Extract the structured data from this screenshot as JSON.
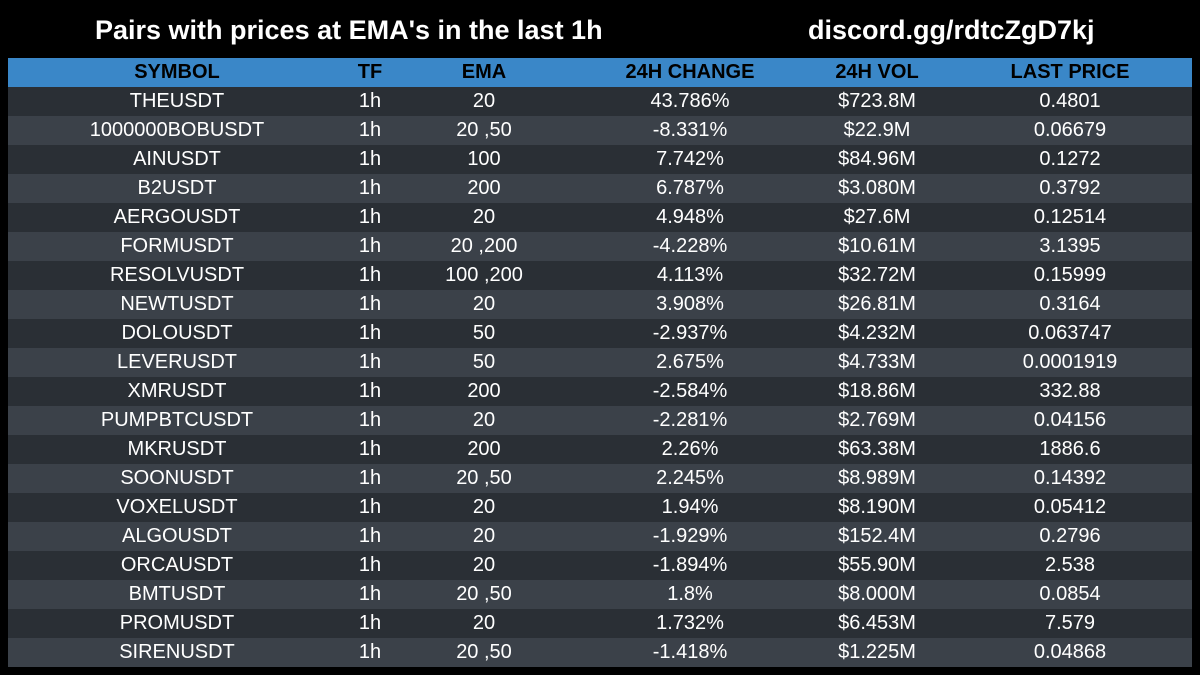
{
  "header": {
    "title": "Pairs with prices at EMA's in the last 1h",
    "link": "discord.gg/rdtcZgD7kj"
  },
  "colors": {
    "background": "#000000",
    "header_row": "#3a87c8",
    "row_dark": "#2a2f35",
    "row_light": "#3b4149"
  },
  "table": {
    "columns": [
      "SYMBOL",
      "TF",
      "EMA",
      "24H CHANGE",
      "24H VOL",
      "LAST PRICE"
    ],
    "rows": [
      [
        "THEUSDT",
        "1h",
        "20",
        "43.786%",
        "$723.8M",
        "0.4801"
      ],
      [
        "1000000BOBUSDT",
        "1h",
        "20 ,50",
        "-8.331%",
        "$22.9M",
        "0.06679"
      ],
      [
        "AINUSDT",
        "1h",
        "100",
        "7.742%",
        "$84.96M",
        "0.1272"
      ],
      [
        "B2USDT",
        "1h",
        "200",
        "6.787%",
        "$3.080M",
        "0.3792"
      ],
      [
        "AERGOUSDT",
        "1h",
        "20",
        "4.948%",
        "$27.6M",
        "0.12514"
      ],
      [
        "FORMUSDT",
        "1h",
        "20 ,200",
        "-4.228%",
        "$10.61M",
        "3.1395"
      ],
      [
        "RESOLVUSDT",
        "1h",
        "100 ,200",
        "4.113%",
        "$32.72M",
        "0.15999"
      ],
      [
        "NEWTUSDT",
        "1h",
        "20",
        "3.908%",
        "$26.81M",
        "0.3164"
      ],
      [
        "DOLOUSDT",
        "1h",
        "50",
        "-2.937%",
        "$4.232M",
        "0.063747"
      ],
      [
        "LEVERUSDT",
        "1h",
        "50",
        "2.675%",
        "$4.733M",
        "0.0001919"
      ],
      [
        "XMRUSDT",
        "1h",
        "200",
        "-2.584%",
        "$18.86M",
        "332.88"
      ],
      [
        "PUMPBTCUSDT",
        "1h",
        "20",
        "-2.281%",
        "$2.769M",
        "0.04156"
      ],
      [
        "MKRUSDT",
        "1h",
        "200",
        "2.26%",
        "$63.38M",
        "1886.6"
      ],
      [
        "SOONUSDT",
        "1h",
        "20 ,50",
        "2.245%",
        "$8.989M",
        "0.14392"
      ],
      [
        "VOXELUSDT",
        "1h",
        "20",
        "1.94%",
        "$8.190M",
        "0.05412"
      ],
      [
        "ALGOUSDT",
        "1h",
        "20",
        "-1.929%",
        "$152.4M",
        "0.2796"
      ],
      [
        "ORCAUSDT",
        "1h",
        "20",
        "-1.894%",
        "$55.90M",
        "2.538"
      ],
      [
        "BMTUSDT",
        "1h",
        "20 ,50",
        "1.8%",
        "$8.000M",
        "0.0854"
      ],
      [
        "PROMUSDT",
        "1h",
        "20",
        "1.732%",
        "$6.453M",
        "7.579"
      ],
      [
        "SIRENUSDT",
        "1h",
        "20 ,50",
        "-1.418%",
        "$1.225M",
        "0.04868"
      ]
    ]
  }
}
